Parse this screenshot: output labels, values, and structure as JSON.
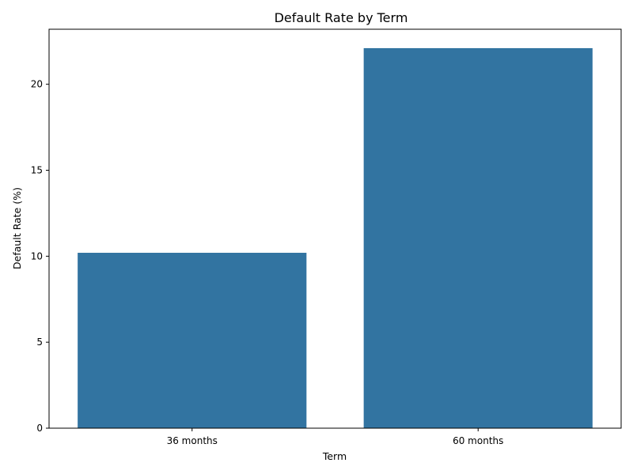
{
  "chart_data": {
    "type": "bar",
    "title": "Default Rate by Term",
    "xlabel": "Term",
    "ylabel": "Default Rate (%)",
    "categories": [
      "36 months",
      "60 months"
    ],
    "values": [
      10.2,
      22.1
    ],
    "ylim": [
      0,
      23.2
    ],
    "yticks": [
      0,
      5,
      10,
      15,
      20
    ],
    "grid": false,
    "legend": "none",
    "colors": {
      "bar": "#3274a1",
      "axis": "#000000",
      "text": "#000000"
    }
  }
}
